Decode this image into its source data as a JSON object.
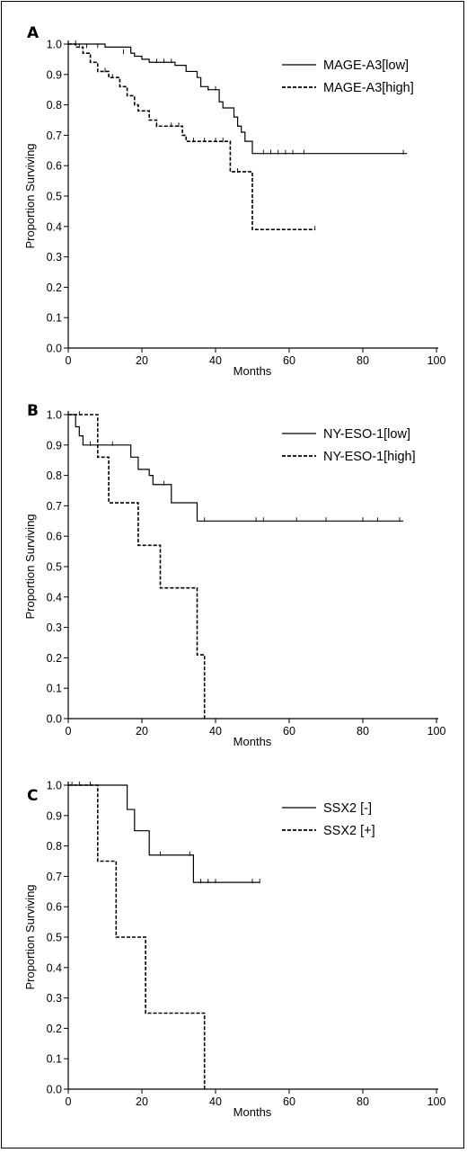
{
  "chart_data": [
    {
      "panel": "A",
      "type": "line",
      "xlabel": "Months",
      "ylabel": "Proportion Surviving",
      "xlim": [
        0,
        100
      ],
      "ylim": [
        0.0,
        1.0
      ],
      "xticks": [
        "0",
        "20",
        "40",
        "60",
        "80",
        "100"
      ],
      "yticks": [
        "0.0",
        "0.1",
        "0.2",
        "0.3",
        "0.4",
        "0.5",
        "0.6",
        "0.7",
        "0.8",
        "0.9",
        "1.0"
      ],
      "legend_position": "top-right",
      "series": [
        {
          "name": "MAGE-A3[low]",
          "style": "solid",
          "steps": [
            [
              0,
              1.0
            ],
            [
              10,
              0.99
            ],
            [
              17,
              0.97
            ],
            [
              18,
              0.96
            ],
            [
              20,
              0.95
            ],
            [
              22,
              0.94
            ],
            [
              29,
              0.93
            ],
            [
              32,
              0.91
            ],
            [
              35,
              0.89
            ],
            [
              36,
              0.86
            ],
            [
              38,
              0.85
            ],
            [
              40,
              0.85
            ],
            [
              41,
              0.81
            ],
            [
              42,
              0.79
            ],
            [
              45,
              0.76
            ],
            [
              46,
              0.73
            ],
            [
              47,
              0.71
            ],
            [
              48,
              0.68
            ],
            [
              50,
              0.64
            ],
            [
              92,
              0.64
            ]
          ],
          "censored": [
            [
              2,
              1.0
            ],
            [
              5,
              0.99
            ],
            [
              8,
              0.99
            ],
            [
              15,
              0.97
            ],
            [
              24,
              0.94
            ],
            [
              26,
              0.94
            ],
            [
              28,
              0.94
            ],
            [
              38,
              0.85
            ],
            [
              40,
              0.85
            ],
            [
              53,
              0.64
            ],
            [
              55,
              0.64
            ],
            [
              57,
              0.64
            ],
            [
              59,
              0.64
            ],
            [
              61,
              0.64
            ],
            [
              64,
              0.64
            ],
            [
              91,
              0.64
            ]
          ]
        },
        {
          "name": "MAGE-A3[high]",
          "style": "dashed",
          "steps": [
            [
              0,
              1.0
            ],
            [
              2,
              0.99
            ],
            [
              4,
              0.97
            ],
            [
              6,
              0.94
            ],
            [
              8,
              0.91
            ],
            [
              11,
              0.89
            ],
            [
              14,
              0.86
            ],
            [
              16,
              0.83
            ],
            [
              18,
              0.8
            ],
            [
              19,
              0.78
            ],
            [
              22,
              0.75
            ],
            [
              24,
              0.73
            ],
            [
              31,
              0.7
            ],
            [
              32,
              0.68
            ],
            [
              44,
              0.58
            ],
            [
              50,
              0.39
            ],
            [
              67,
              0.39
            ]
          ],
          "censored": [
            [
              3,
              0.99
            ],
            [
              10,
              0.91
            ],
            [
              12,
              0.89
            ],
            [
              24,
              0.73
            ],
            [
              28,
              0.73
            ],
            [
              30,
              0.73
            ],
            [
              34,
              0.68
            ],
            [
              37,
              0.68
            ],
            [
              40,
              0.68
            ],
            [
              42,
              0.68
            ],
            [
              46,
              0.58
            ],
            [
              67,
              0.39
            ]
          ]
        }
      ]
    },
    {
      "panel": "B",
      "type": "line",
      "xlabel": "Months",
      "ylabel": "Proportion Surviving",
      "xlim": [
        0,
        100
      ],
      "ylim": [
        0.0,
        1.0
      ],
      "xticks": [
        "0",
        "20",
        "40",
        "60",
        "80",
        "100"
      ],
      "yticks": [
        "0.0",
        "0.1",
        "0.2",
        "0.3",
        "0.4",
        "0.5",
        "0.6",
        "0.7",
        "0.8",
        "0.9",
        "1.0"
      ],
      "legend_position": "top-right",
      "series": [
        {
          "name": "NY-ESO-1[low]",
          "style": "solid",
          "steps": [
            [
              0,
              1.0
            ],
            [
              2,
              0.96
            ],
            [
              3,
              0.93
            ],
            [
              4,
              0.9
            ],
            [
              17,
              0.86
            ],
            [
              19,
              0.82
            ],
            [
              22,
              0.8
            ],
            [
              23,
              0.77
            ],
            [
              28,
              0.71
            ],
            [
              35,
              0.65
            ],
            [
              91,
              0.65
            ]
          ],
          "censored": [
            [
              6,
              0.9
            ],
            [
              12,
              0.9
            ],
            [
              26,
              0.77
            ],
            [
              37,
              0.65
            ],
            [
              51,
              0.65
            ],
            [
              53,
              0.65
            ],
            [
              62,
              0.65
            ],
            [
              70,
              0.65
            ],
            [
              80,
              0.65
            ],
            [
              84,
              0.65
            ],
            [
              90,
              0.65
            ]
          ]
        },
        {
          "name": "NY-ESO-1[high]",
          "style": "dashed",
          "steps": [
            [
              0,
              1.0
            ],
            [
              8,
              0.86
            ],
            [
              11,
              0.71
            ],
            [
              19,
              0.57
            ],
            [
              25,
              0.43
            ],
            [
              35,
              0.21
            ],
            [
              37,
              0.0
            ]
          ],
          "censored": [
            [
              3,
              1.0
            ]
          ]
        }
      ]
    },
    {
      "panel": "C",
      "type": "line",
      "xlabel": "Months",
      "ylabel": "Proportion Surviving",
      "xlim": [
        0,
        100
      ],
      "ylim": [
        0.0,
        1.0
      ],
      "xticks": [
        "0",
        "20",
        "40",
        "60",
        "80",
        "100"
      ],
      "yticks": [
        "0.0",
        "0.1",
        "0.2",
        "0.3",
        "0.4",
        "0.5",
        "0.6",
        "0.7",
        "0.8",
        "0.9",
        "1.0"
      ],
      "legend_position": "top-right",
      "series": [
        {
          "name": "SSX2 [-]",
          "style": "solid",
          "steps": [
            [
              0,
              1.0
            ],
            [
              16,
              0.92
            ],
            [
              18,
              0.85
            ],
            [
              22,
              0.77
            ],
            [
              34,
              0.68
            ],
            [
              52,
              0.68
            ]
          ],
          "censored": [
            [
              1,
              1.0
            ],
            [
              3,
              1.0
            ],
            [
              6,
              1.0
            ],
            [
              25,
              0.77
            ],
            [
              33,
              0.77
            ],
            [
              36,
              0.68
            ],
            [
              38,
              0.68
            ],
            [
              40,
              0.68
            ],
            [
              50,
              0.68
            ],
            [
              52,
              0.68
            ]
          ]
        },
        {
          "name": "SSX2 [+]",
          "style": "dashed",
          "steps": [
            [
              0,
              1.0
            ],
            [
              8,
              0.75
            ],
            [
              13,
              0.5
            ],
            [
              21,
              0.25
            ],
            [
              37,
              0.0
            ]
          ],
          "censored": []
        }
      ]
    }
  ]
}
